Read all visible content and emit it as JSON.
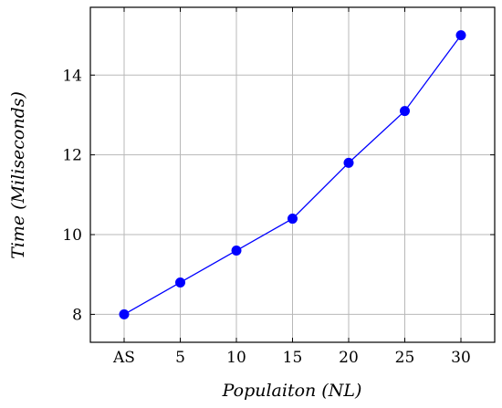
{
  "chart_data": {
    "type": "line",
    "categories": [
      "AS",
      "5",
      "10",
      "15",
      "20",
      "25",
      "30"
    ],
    "series": [
      {
        "values": [
          8.0,
          8.8,
          9.6,
          10.4,
          11.8,
          13.1,
          15.0
        ],
        "color": "#0000ff",
        "marker": "circle"
      }
    ],
    "xlabel": "Populaiton (NL)",
    "ylabel": "Time (Miliseconds)",
    "ylim": [
      7.3,
      15.7
    ],
    "yticks": [
      8,
      10,
      12,
      14
    ],
    "grid": true,
    "legend": "none"
  }
}
